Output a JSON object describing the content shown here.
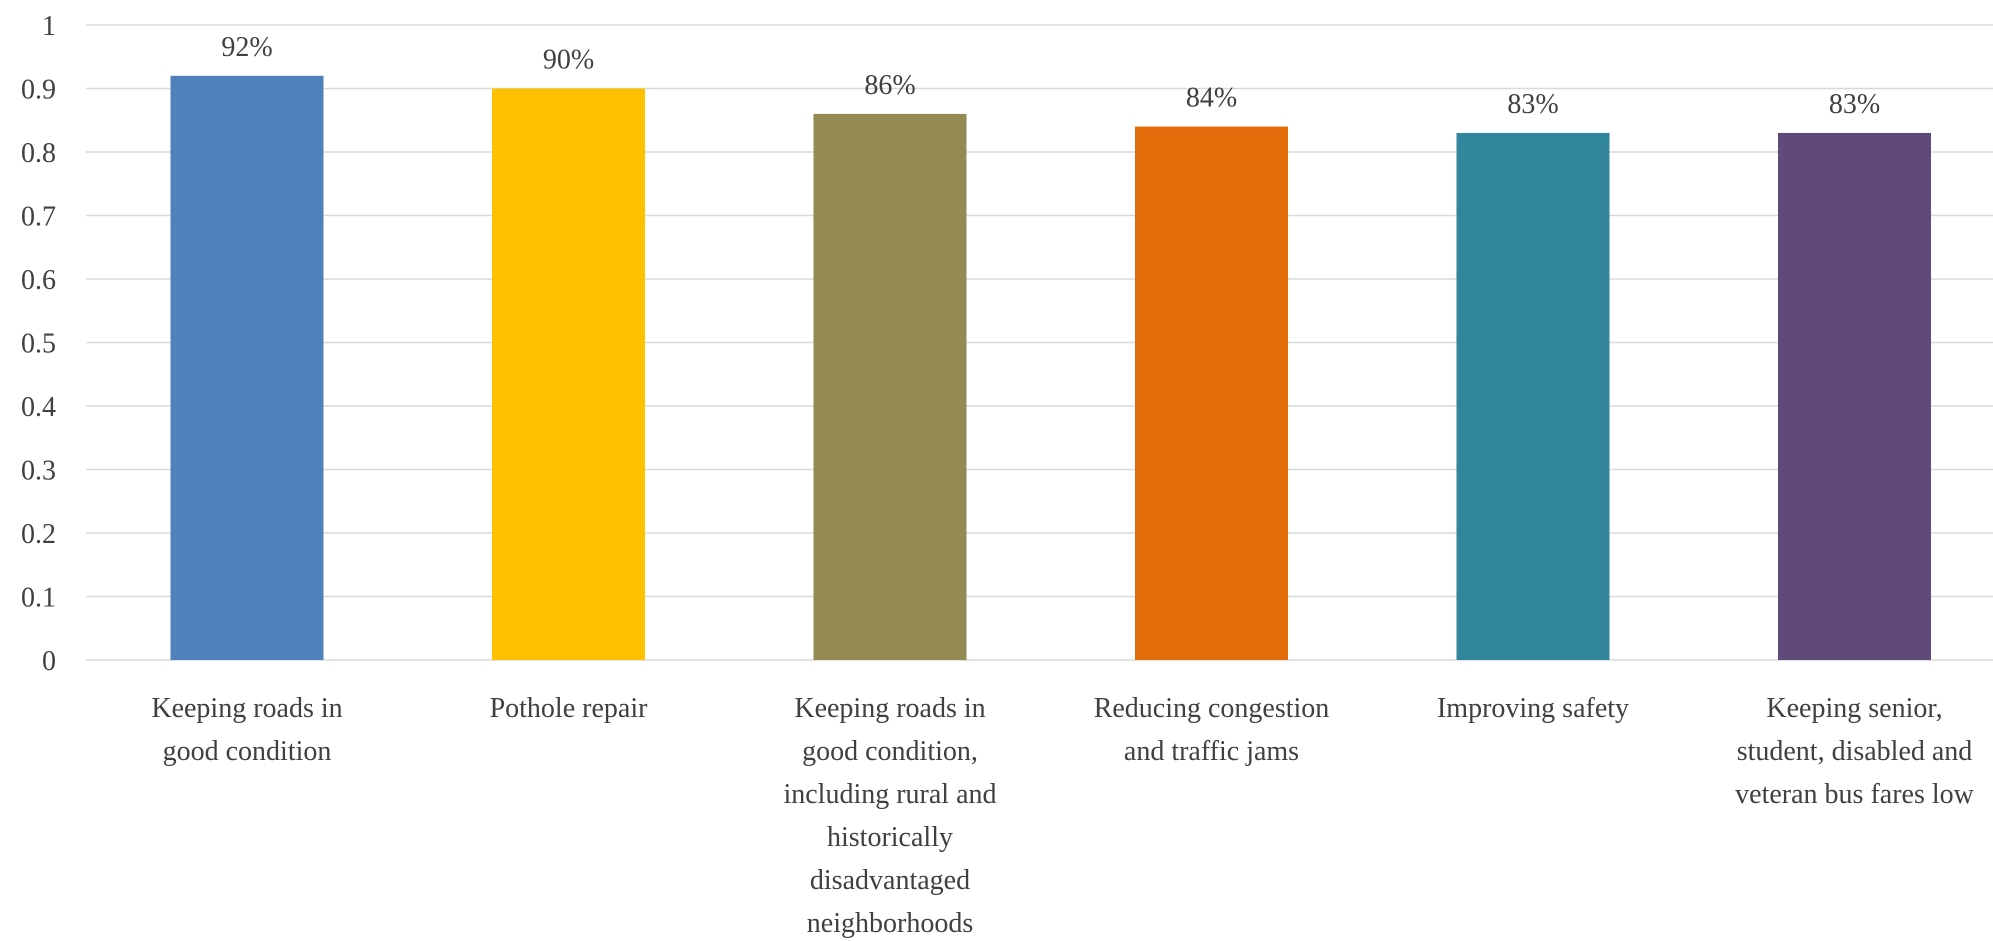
{
  "chart_data": {
    "type": "bar",
    "categories": [
      [
        "Keeping roads in",
        "good condition"
      ],
      [
        "Pothole repair"
      ],
      [
        "Keeping roads in",
        "good condition,",
        "including rural and",
        "historically",
        "disadvantaged",
        "neighborhoods"
      ],
      [
        "Reducing congestion",
        "and traffic jams"
      ],
      [
        "Improving safety"
      ],
      [
        "Keeping senior,",
        "student, disabled and",
        "veteran bus fares low"
      ]
    ],
    "values": [
      0.92,
      0.9,
      0.86,
      0.84,
      0.83,
      0.83
    ],
    "data_labels": [
      "92%",
      "90%",
      "86%",
      "84%",
      "83%",
      "83%"
    ],
    "colors": [
      "#4F81BD",
      "#FFC000",
      "#948A54",
      "#E36C0A",
      "#31859C",
      "#604A7B"
    ],
    "ylim": [
      0,
      1
    ],
    "yticks": [
      "0",
      "0.1",
      "0.2",
      "0.3",
      "0.4",
      "0.5",
      "0.6",
      "0.7",
      "0.8",
      "0.9",
      "1"
    ],
    "grid": true,
    "gridline_color": "#d9d9d9"
  }
}
